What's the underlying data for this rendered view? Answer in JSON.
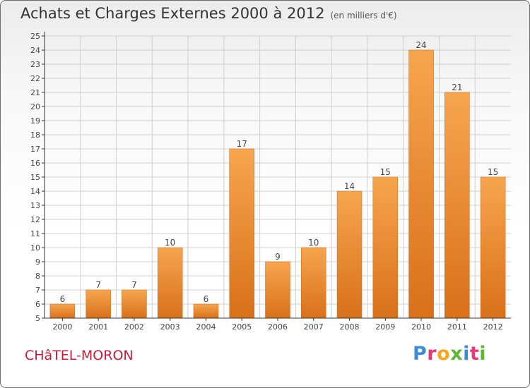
{
  "header": {
    "title": "Achats et Charges Externes 2000 à 2012",
    "subtitle": "(en milliers d'€)"
  },
  "place": "CHâTEL-MORON",
  "logo": {
    "letters": [
      {
        "ch": "P",
        "color": "#3b8dd8"
      },
      {
        "ch": "r",
        "color": "#e53a7a"
      },
      {
        "ch": "o",
        "color": "#f5a623"
      },
      {
        "ch": "x",
        "color": "#5bb832"
      },
      {
        "ch": "i",
        "color": "#3b8dd8"
      },
      {
        "ch": "t",
        "color": "#e53a7a"
      },
      {
        "ch": "i",
        "color": "#5bb832"
      }
    ]
  },
  "colors": {
    "bar_top": "#f7a54f",
    "bar_bottom": "#d9701a",
    "grid": "#cfcfcf",
    "axis": "#333333"
  },
  "chart_data": {
    "type": "bar",
    "categories": [
      "2000",
      "2001",
      "2002",
      "2003",
      "2004",
      "2005",
      "2006",
      "2007",
      "2008",
      "2009",
      "2010",
      "2011",
      "2012"
    ],
    "values": [
      6,
      7,
      7,
      10,
      6,
      17,
      9,
      10,
      14,
      15,
      24,
      21,
      15
    ],
    "ylim": [
      5,
      25
    ],
    "yticks": [
      5,
      6,
      7,
      8,
      9,
      10,
      11,
      12,
      13,
      14,
      15,
      16,
      17,
      18,
      19,
      20,
      21,
      22,
      23,
      24,
      25
    ],
    "grid": true,
    "data_labels": true
  }
}
